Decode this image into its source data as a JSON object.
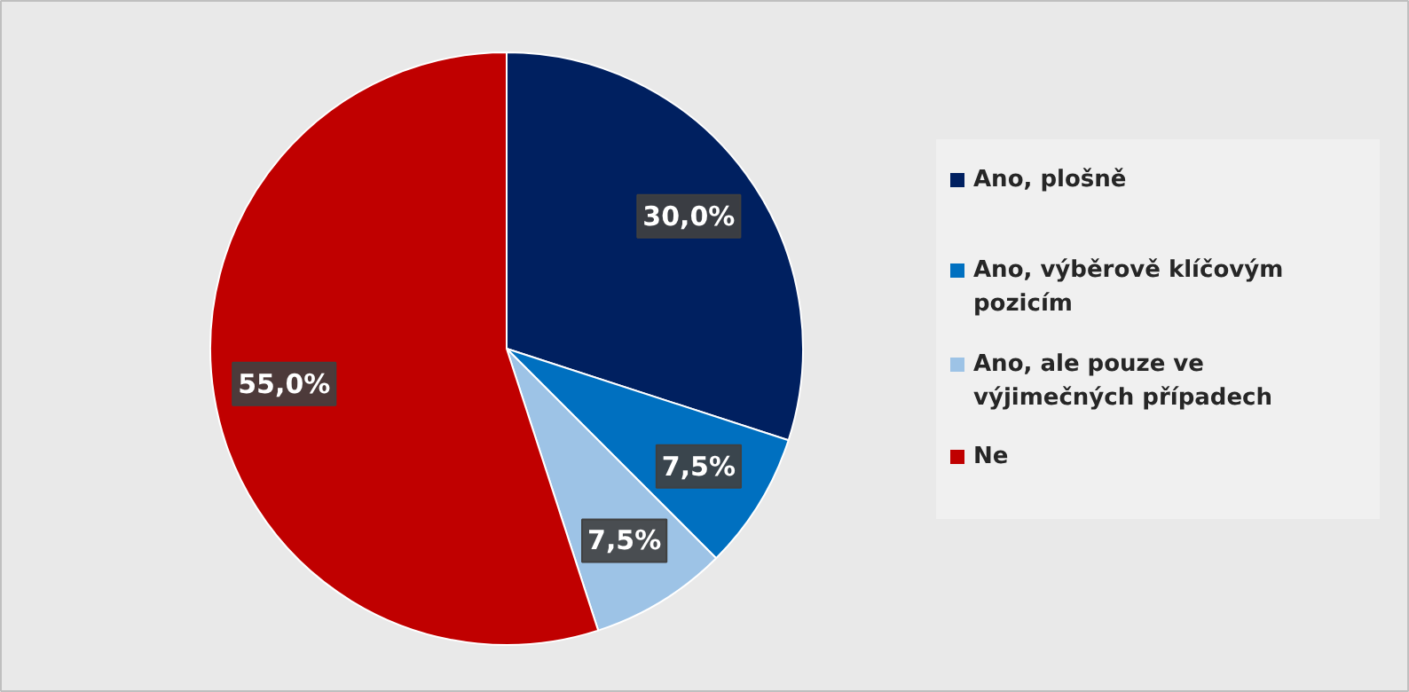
{
  "chart_data": {
    "type": "pie",
    "categories": [
      "Ano, plošně",
      "Ano, výběrově klíčovým pozicím",
      "Ano, ale pouze ve výjimečných případech",
      "Ne"
    ],
    "values": [
      30.0,
      7.5,
      7.5,
      55.0
    ],
    "colors": [
      "#002060",
      "#0070c0",
      "#9dc3e6",
      "#c00000"
    ],
    "value_labels": [
      "30,0%",
      "7,5%",
      "7,5%",
      "55,0%"
    ],
    "legend": "right"
  }
}
